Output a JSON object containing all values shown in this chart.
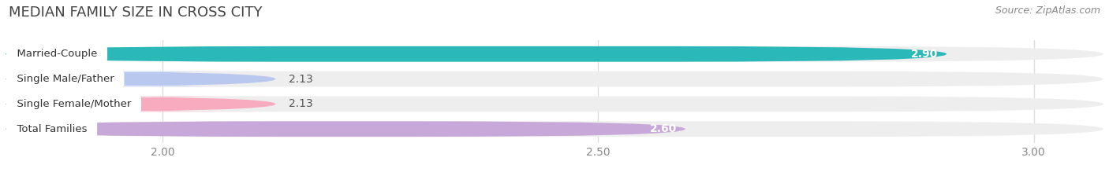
{
  "title": "MEDIAN FAMILY SIZE IN CROSS CITY",
  "source": "Source: ZipAtlas.com",
  "categories": [
    "Married-Couple",
    "Single Male/Father",
    "Single Female/Mother",
    "Total Families"
  ],
  "values": [
    2.9,
    2.13,
    2.13,
    2.6
  ],
  "bar_colors": [
    "#2ab8b8",
    "#b8c8ee",
    "#f8aabf",
    "#c8a8d8"
  ],
  "value_inside": [
    true,
    false,
    false,
    true
  ],
  "x_min": 1.82,
  "x_max": 3.08,
  "x_ticks": [
    2.0,
    2.5,
    3.0
  ],
  "x_tick_labels": [
    "2.00",
    "2.50",
    "3.00"
  ],
  "bar_height": 0.62,
  "title_fontsize": 13,
  "source_fontsize": 9,
  "label_fontsize": 9.5,
  "value_fontsize": 10,
  "tick_fontsize": 10,
  "background_color": "#ffffff",
  "bar_bg_color": "#eeeeee",
  "grid_color": "#dddddd",
  "label_bg_color": "#ffffff"
}
